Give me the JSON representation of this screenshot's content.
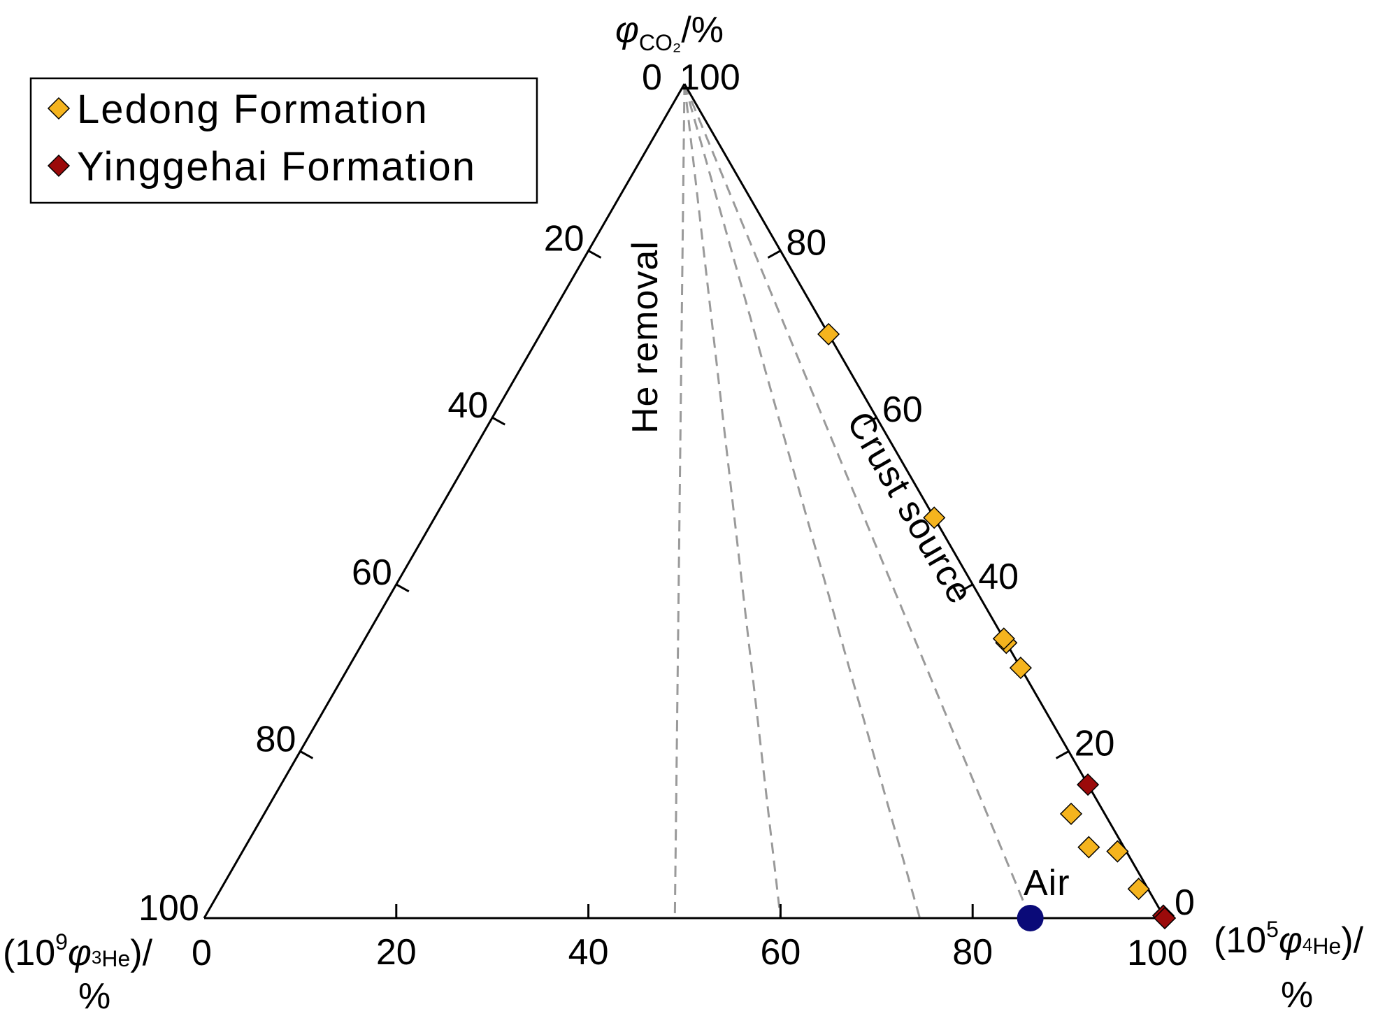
{
  "chart_data": {
    "type": "scatter",
    "subtype": "ternary",
    "top_axis": {
      "label": {
        "symbol": "φ",
        "subscript": "CO₂",
        "suffix": "/%"
      },
      "corner_labels": [
        "0",
        "100"
      ]
    },
    "left_axis": {
      "label": {
        "prefix": "(10",
        "superscript": "9",
        "symbol": "φ",
        "pre_subscript": "3",
        "subscript": "He",
        "suffix": ")/",
        "unit": "%"
      },
      "corner_label": "0"
    },
    "right_axis": {
      "label": {
        "prefix": "(10",
        "superscript": "5",
        "symbol": "φ",
        "pre_subscript": "4",
        "subscript": "He",
        "suffix": ")/",
        "unit": "%"
      }
    },
    "ticks": {
      "bottom": [
        "20",
        "40",
        "60",
        "80"
      ],
      "bottom_end_labels": [
        "100",
        "0",
        "100"
      ],
      "left_edge": [
        "20",
        "40",
        "60",
        "80"
      ],
      "right_edge": [
        "80",
        "60",
        "40",
        "20",
        "0"
      ]
    },
    "annotations": {
      "he_removal": "He removal",
      "crust_source": "Crust source",
      "air": "Air"
    },
    "legend": {
      "placement": "top-left",
      "entries": [
        {
          "label": "Ledong Formation",
          "color": "#F5B41E",
          "marker": "diamond"
        },
        {
          "label": "Yinggehai Formation",
          "color": "#9B0A0A",
          "marker": "diamond"
        }
      ]
    },
    "reference_lines_bottom_intercept_b": [
      49,
      60,
      74.5,
      86
    ],
    "air_point": {
      "b": 86,
      "t": 0,
      "color": "#0A0A78"
    },
    "series": [
      {
        "name": "Ledong Formation",
        "color": "#F5B41E",
        "points": [
          {
            "b": 100,
            "t": 70
          },
          {
            "b": 100,
            "t": 48
          },
          {
            "b": 100,
            "t": 33
          },
          {
            "b": 100,
            "t": 33.5
          },
          {
            "b": 100,
            "t": 30
          },
          {
            "b": 96,
            "t": 12.5
          },
          {
            "b": 96,
            "t": 8.5
          },
          {
            "b": 99,
            "t": 8
          },
          {
            "b": 99,
            "t": 3.5
          },
          {
            "b": 100,
            "t": 0
          }
        ]
      },
      {
        "name": "Yinggehai Formation",
        "color": "#9B0A0A",
        "points": [
          {
            "b": 100,
            "t": 16
          },
          {
            "b": 100,
            "t": 0.3
          },
          {
            "b": 100,
            "t": 0
          }
        ]
      }
    ]
  }
}
